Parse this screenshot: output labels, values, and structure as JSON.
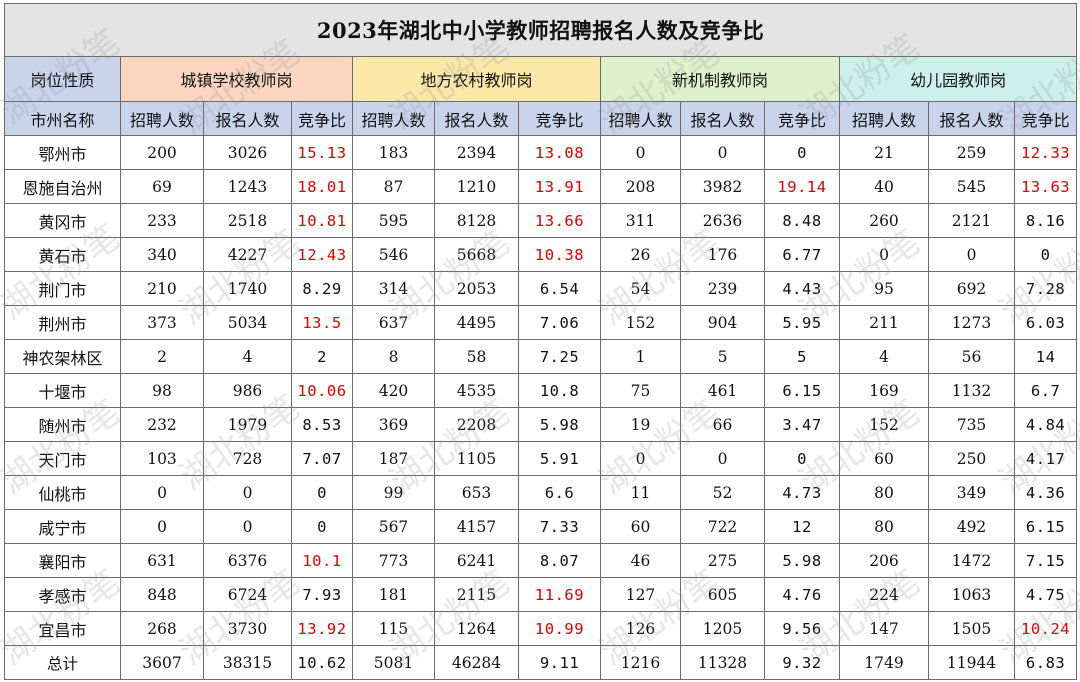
{
  "title": "2023年湖北中小学教师招聘报名人数及竞争比",
  "header": {
    "corner_top": "岗位性质",
    "corner_bottom": "市州名称",
    "groups": [
      "城镇学校教师岗",
      "地方农村教师岗",
      "新机制教师岗",
      "幼儿园教师岗"
    ],
    "sub_headers": [
      "招聘人数",
      "报名人数",
      "竞争比"
    ]
  },
  "rows": [
    {
      "city": "鄂州市",
      "v": [
        "200",
        "3026",
        "15.13",
        "183",
        "2394",
        "13.08",
        "0",
        "0",
        "0",
        "21",
        "259",
        "12.33"
      ],
      "red": [
        2,
        5,
        11
      ]
    },
    {
      "city": "恩施自治州",
      "v": [
        "69",
        "1243",
        "18.01",
        "87",
        "1210",
        "13.91",
        "208",
        "3982",
        "19.14",
        "40",
        "545",
        "13.63"
      ],
      "red": [
        2,
        5,
        8,
        11
      ]
    },
    {
      "city": "黄冈市",
      "v": [
        "233",
        "2518",
        "10.81",
        "595",
        "8128",
        "13.66",
        "311",
        "2636",
        "8.48",
        "260",
        "2121",
        "8.16"
      ],
      "red": [
        2,
        5
      ]
    },
    {
      "city": "黄石市",
      "v": [
        "340",
        "4227",
        "12.43",
        "546",
        "5668",
        "10.38",
        "26",
        "176",
        "6.77",
        "0",
        "0",
        "0"
      ],
      "red": [
        2,
        5
      ]
    },
    {
      "city": "荆门市",
      "v": [
        "210",
        "1740",
        "8.29",
        "314",
        "2053",
        "6.54",
        "54",
        "239",
        "4.43",
        "95",
        "692",
        "7.28"
      ],
      "red": []
    },
    {
      "city": "荆州市",
      "v": [
        "373",
        "5034",
        "13.5",
        "637",
        "4495",
        "7.06",
        "152",
        "904",
        "5.95",
        "211",
        "1273",
        "6.03"
      ],
      "red": [
        2
      ]
    },
    {
      "city": "神农架林区",
      "v": [
        "2",
        "4",
        "2",
        "8",
        "58",
        "7.25",
        "1",
        "5",
        "5",
        "4",
        "56",
        "14"
      ],
      "red": []
    },
    {
      "city": "十堰市",
      "v": [
        "98",
        "986",
        "10.06",
        "420",
        "4535",
        "10.8",
        "75",
        "461",
        "6.15",
        "169",
        "1132",
        "6.7"
      ],
      "red": [
        2
      ]
    },
    {
      "city": "随州市",
      "v": [
        "232",
        "1979",
        "8.53",
        "369",
        "2208",
        "5.98",
        "19",
        "66",
        "3.47",
        "152",
        "735",
        "4.84"
      ],
      "red": []
    },
    {
      "city": "天门市",
      "v": [
        "103",
        "728",
        "7.07",
        "187",
        "1105",
        "5.91",
        "0",
        "0",
        "0",
        "60",
        "250",
        "4.17"
      ],
      "red": []
    },
    {
      "city": "仙桃市",
      "v": [
        "0",
        "0",
        "0",
        "99",
        "653",
        "6.6",
        "11",
        "52",
        "4.73",
        "80",
        "349",
        "4.36"
      ],
      "red": []
    },
    {
      "city": "咸宁市",
      "v": [
        "0",
        "0",
        "0",
        "567",
        "4157",
        "7.33",
        "60",
        "722",
        "12",
        "80",
        "492",
        "6.15"
      ],
      "red": []
    },
    {
      "city": "襄阳市",
      "v": [
        "631",
        "6376",
        "10.1",
        "773",
        "6241",
        "8.07",
        "46",
        "275",
        "5.98",
        "206",
        "1472",
        "7.15"
      ],
      "red": [
        2
      ]
    },
    {
      "city": "孝感市",
      "v": [
        "848",
        "6724",
        "7.93",
        "181",
        "2115",
        "11.69",
        "127",
        "605",
        "4.76",
        "224",
        "1063",
        "4.75"
      ],
      "red": [
        5
      ]
    },
    {
      "city": "宜昌市",
      "v": [
        "268",
        "3730",
        "13.92",
        "115",
        "1264",
        "10.99",
        "126",
        "1205",
        "9.56",
        "147",
        "1505",
        "10.24"
      ],
      "red": [
        2,
        5,
        11
      ]
    }
  ],
  "total": {
    "label": "总计",
    "v": [
      "3607",
      "38315",
      "10.62",
      "5081",
      "46284",
      "9.11",
      "1216",
      "11328",
      "9.32",
      "1749",
      "11944",
      "6.83"
    ]
  },
  "watermark": "湖北粉笔",
  "colors": {
    "red": "#e00000",
    "label_bg": "#c9d4ec",
    "g1": "#fbd5c0",
    "g2": "#fbe8a8",
    "g3": "#dff0cc",
    "g4": "#cdf0ea"
  }
}
